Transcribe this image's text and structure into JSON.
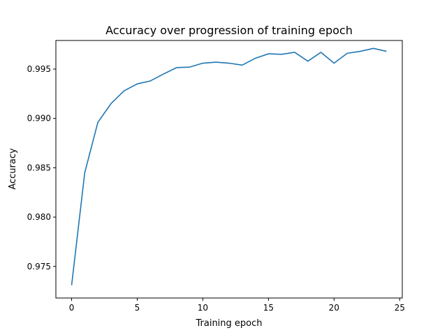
{
  "chart_data": {
    "type": "line",
    "title": "Accuracy over progression of training epoch",
    "xlabel": "Training epoch",
    "ylabel": "Accuracy",
    "xlim": [
      -1.2,
      25.2
    ],
    "ylim": [
      0.9718,
      0.9979
    ],
    "xticks": [
      0,
      5,
      10,
      15,
      20,
      25
    ],
    "yticks": [
      0.975,
      0.98,
      0.985,
      0.99,
      0.995
    ],
    "ytick_labels": [
      "0.975",
      "0.980",
      "0.985",
      "0.990",
      "0.995"
    ],
    "grid": false,
    "series": [
      {
        "color": "#1f77b4",
        "x": [
          0,
          1,
          2,
          3,
          4,
          5,
          6,
          7,
          8,
          9,
          10,
          11,
          12,
          13,
          14,
          15,
          16,
          17,
          18,
          19,
          20,
          21,
          22,
          23,
          24
        ],
        "y": [
          0.9731,
          0.9845,
          0.9896,
          0.9915,
          0.9928,
          0.9935,
          0.9938,
          0.9945,
          0.99515,
          0.9952,
          0.9956,
          0.9957,
          0.9956,
          0.9954,
          0.9961,
          0.99655,
          0.9965,
          0.9967,
          0.9958,
          0.9967,
          0.9956,
          0.9966,
          0.9968,
          0.9971,
          0.9968
        ]
      }
    ]
  }
}
